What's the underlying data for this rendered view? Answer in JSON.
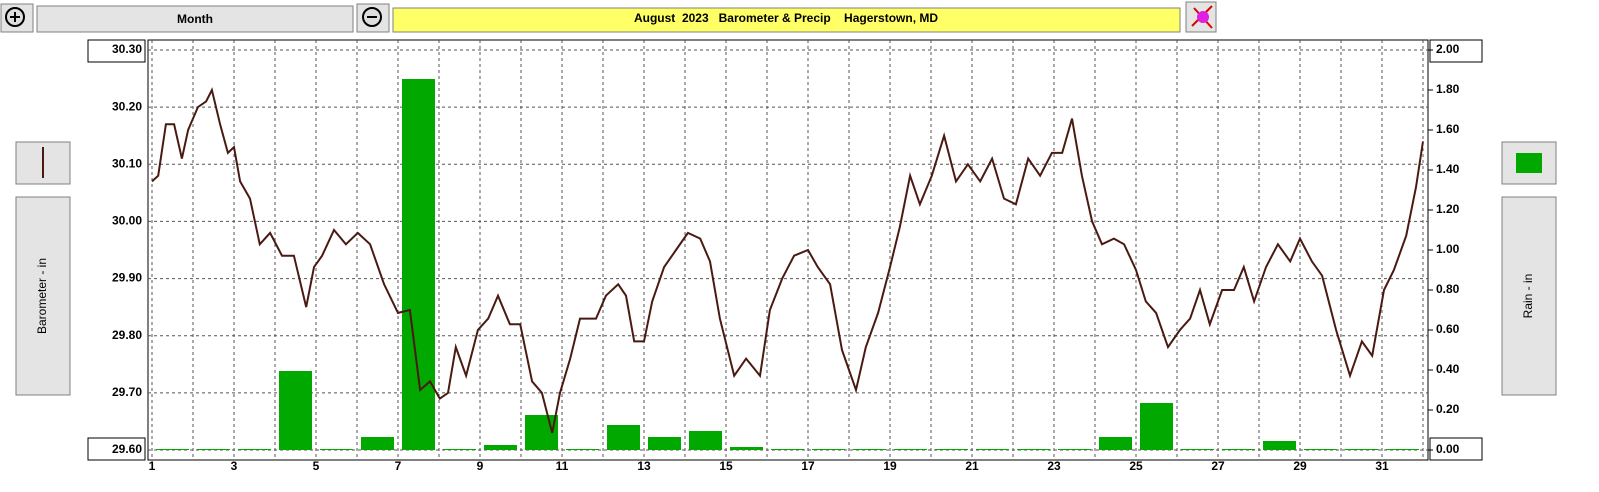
{
  "toolbar": {
    "period": "Month"
  },
  "chart_data": {
    "type": "line-bar",
    "title": "August  2023   Barometer & Precip    Hagerstown, MD",
    "ylabel": "Barometer - in",
    "y2label": "Rain - in",
    "xlim": [
      1,
      32
    ],
    "xticks": [
      1,
      3,
      5,
      7,
      9,
      11,
      13,
      15,
      17,
      19,
      21,
      23,
      25,
      27,
      29,
      31
    ],
    "x_minor_ticks": [
      2,
      4,
      6,
      8,
      10,
      12,
      14,
      16,
      18,
      20,
      22,
      24,
      26,
      28,
      30,
      32
    ],
    "ylim": [
      29.6,
      30.3
    ],
    "yticks": [
      {
        "value": 29.6,
        "label": "29.60"
      },
      {
        "value": 29.7,
        "label": "29.70"
      },
      {
        "value": 29.8,
        "label": "29.80"
      },
      {
        "value": 29.9,
        "label": "29.90"
      },
      {
        "value": 30.0,
        "label": "30.00"
      },
      {
        "value": 30.1,
        "label": "30.10"
      },
      {
        "value": 30.2,
        "label": "30.20"
      },
      {
        "value": 30.3,
        "label": "30.30"
      }
    ],
    "y2lim": [
      0,
      2
    ],
    "y2ticks": [
      {
        "value": 0,
        "label": "0.00"
      },
      {
        "value": 0.2,
        "label": "0.20"
      },
      {
        "value": 0.4,
        "label": "0.40"
      },
      {
        "value": 0.6,
        "label": "0.60"
      },
      {
        "value": 0.8,
        "label": "0.80"
      },
      {
        "value": 1.0,
        "label": "1.00"
      },
      {
        "value": 1.2,
        "label": "1.20"
      },
      {
        "value": 1.4,
        "label": "1.40"
      },
      {
        "value": 1.6,
        "label": "1.60"
      },
      {
        "value": 1.8,
        "label": "1.80"
      },
      {
        "value": 2.0,
        "label": "2.00"
      }
    ],
    "grid": true,
    "series": [
      {
        "type": "line",
        "color": "#4a1a12",
        "x": [
          1.0,
          1.15,
          1.34,
          1.54,
          1.73,
          1.88,
          2.12,
          2.32,
          2.46,
          2.66,
          2.85,
          3.0,
          3.15,
          3.39,
          3.63,
          3.88,
          4.17,
          4.46,
          4.76,
          4.95,
          5.15,
          5.44,
          5.73,
          6.02,
          6.32,
          6.66,
          7.0,
          7.29,
          7.54,
          7.78,
          8.02,
          8.22,
          8.41,
          8.66,
          8.95,
          9.2,
          9.44,
          9.73,
          9.98,
          10.27,
          10.51,
          10.76,
          10.95,
          11.2,
          11.44,
          11.83,
          12.07,
          12.37,
          12.56,
          12.76,
          13.0,
          13.2,
          13.49,
          13.78,
          14.07,
          14.37,
          14.61,
          14.85,
          15.2,
          15.49,
          15.83,
          16.07,
          16.37,
          16.66,
          17.0,
          17.24,
          17.54,
          17.83,
          18.17,
          18.41,
          18.71,
          19.0,
          19.24,
          19.49,
          19.73,
          20.02,
          20.32,
          20.61,
          20.9,
          21.2,
          21.49,
          21.78,
          22.07,
          22.37,
          22.66,
          22.95,
          23.2,
          23.44,
          23.68,
          23.93,
          24.17,
          24.46,
          24.71,
          25.0,
          25.24,
          25.49,
          25.78,
          26.07,
          26.32,
          26.56,
          26.8,
          27.1,
          27.39,
          27.63,
          27.88,
          28.17,
          28.46,
          28.76,
          29.0,
          29.29,
          29.54,
          29.88,
          30.22,
          30.51,
          30.76,
          31.05,
          31.29,
          31.59,
          31.83,
          32.0
        ],
        "values": [
          30.07,
          30.08,
          30.17,
          30.17,
          30.11,
          30.16,
          30.2,
          30.21,
          30.23,
          30.17,
          30.12,
          30.13,
          30.07,
          30.04,
          29.96,
          29.98,
          29.94,
          29.94,
          29.85,
          29.92,
          29.94,
          29.985,
          29.96,
          29.98,
          29.96,
          29.89,
          29.84,
          29.845,
          29.705,
          29.72,
          29.69,
          29.7,
          29.78,
          29.73,
          29.81,
          29.83,
          29.87,
          29.82,
          29.82,
          29.72,
          29.7,
          29.63,
          29.7,
          29.76,
          29.83,
          29.83,
          29.87,
          29.89,
          29.87,
          29.79,
          29.79,
          29.86,
          29.92,
          29.95,
          29.98,
          29.97,
          29.93,
          29.83,
          29.73,
          29.76,
          29.73,
          29.845,
          29.9,
          29.94,
          29.95,
          29.92,
          29.89,
          29.775,
          29.705,
          29.78,
          29.84,
          29.92,
          29.99,
          30.08,
          30.03,
          30.08,
          30.15,
          30.07,
          30.1,
          30.07,
          30.11,
          30.04,
          30.03,
          30.11,
          30.08,
          30.12,
          30.12,
          30.18,
          30.08,
          30.0,
          29.96,
          29.97,
          29.96,
          29.915,
          29.86,
          29.84,
          29.78,
          29.81,
          29.83,
          29.88,
          29.82,
          29.88,
          29.88,
          29.92,
          29.86,
          29.92,
          29.96,
          29.93,
          29.97,
          29.93,
          29.905,
          29.81,
          29.73,
          29.79,
          29.765,
          29.88,
          29.915,
          29.975,
          30.06,
          30.14
        ]
      },
      {
        "type": "bar",
        "axis": "y2",
        "color": "#00a800",
        "x": [
          1,
          2,
          3,
          4,
          5,
          6,
          7,
          8,
          9,
          10,
          11,
          12,
          13,
          14,
          15,
          16,
          17,
          18,
          19,
          20,
          21,
          22,
          23,
          24,
          25,
          26,
          27,
          28,
          29,
          30,
          31
        ],
        "values": [
          0,
          0,
          0,
          0.39,
          0,
          0.06,
          1.85,
          0,
          0.02,
          0.17,
          0,
          0.12,
          0.06,
          0.09,
          0.01,
          0,
          0,
          0,
          0,
          0,
          0,
          0,
          0,
          0.06,
          0.23,
          0,
          0,
          0.04,
          0,
          0,
          0
        ]
      }
    ]
  }
}
